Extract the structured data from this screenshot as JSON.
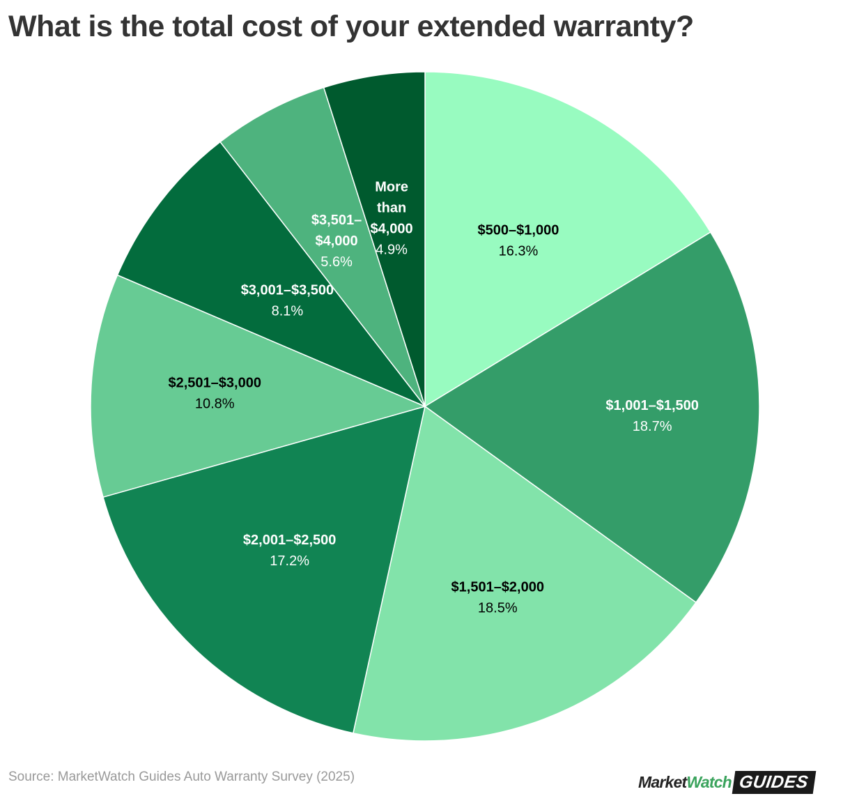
{
  "title": "What is the total cost of your extended warranty?",
  "source": "Source: MarketWatch Guides Auto Warranty Survey (2025)",
  "logo": {
    "market": "Market",
    "watch": "Watch",
    "guides": "GUIDES"
  },
  "chart_data": {
    "type": "pie",
    "title": "What is the total cost of your extended warranty?",
    "start_angle": "12 o'clock",
    "direction": "clockwise",
    "slices": [
      {
        "label_lines": [
          "$500–$1,000"
        ],
        "value": 16.3,
        "value_label": "16.3%",
        "color": "#98fbc0",
        "text_color": "#000000"
      },
      {
        "label_lines": [
          "$1,001–$1,500"
        ],
        "value": 18.7,
        "value_label": "18.7%",
        "color": "#349d69",
        "text_color": "#ffffff"
      },
      {
        "label_lines": [
          "$1,501–$2,000"
        ],
        "value": 18.5,
        "value_label": "18.5%",
        "color": "#82e3aa",
        "text_color": "#000000"
      },
      {
        "label_lines": [
          "$2,001–$2,500"
        ],
        "value": 17.2,
        "value_label": "17.2%",
        "color": "#118453",
        "text_color": "#ffffff"
      },
      {
        "label_lines": [
          "$2,501–$3,000"
        ],
        "value": 10.8,
        "value_label": "10.8%",
        "color": "#67cb94",
        "text_color": "#000000"
      },
      {
        "label_lines": [
          "$3,001–$3,500"
        ],
        "value": 8.1,
        "value_label": "8.1%",
        "color": "#036c3d",
        "text_color": "#ffffff"
      },
      {
        "label_lines": [
          "$3,501–",
          "$4,000"
        ],
        "value": 5.6,
        "value_label": "5.6%",
        "color": "#4eb37e",
        "text_color": "#ffffff"
      },
      {
        "label_lines": [
          "More",
          "than",
          "$4,000"
        ],
        "value": 4.9,
        "value_label": "4.9%",
        "color": "#005a2e",
        "text_color": "#ffffff"
      }
    ]
  }
}
